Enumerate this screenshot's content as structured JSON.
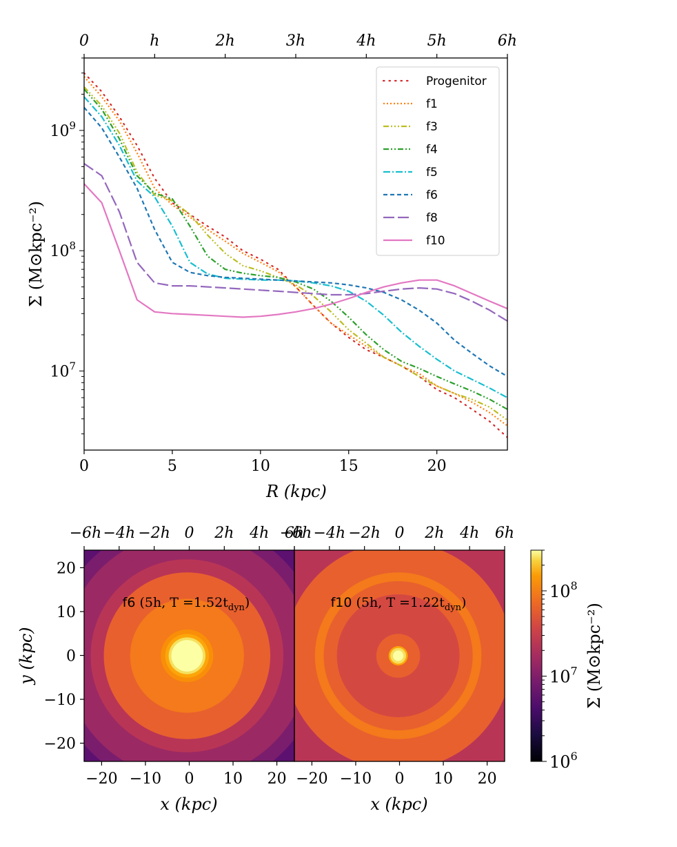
{
  "chart_data": [
    {
      "type": "line",
      "title": "",
      "xlabel": "R (kpc)",
      "ylabel": "Σ (M⊙kpc⁻²)",
      "yscale": "log",
      "xlim": [
        0,
        24
      ],
      "ylim": [
        2200000,
        4000000000
      ],
      "x_ticks": [
        0,
        5,
        10,
        15,
        20
      ],
      "y_ticks": [
        {
          "value": 10000000,
          "mantissa": "10",
          "exp": "7"
        },
        {
          "value": 100000000,
          "mantissa": "10",
          "exp": "8"
        },
        {
          "value": 1000000000,
          "mantissa": "10",
          "exp": "9"
        }
      ],
      "top_axis": {
        "label_unit": "h",
        "ticks": [
          {
            "value": 0,
            "label": "0"
          },
          {
            "value": 4,
            "label": "h"
          },
          {
            "value": 8,
            "label": "2h"
          },
          {
            "value": 12,
            "label": "3h"
          },
          {
            "value": 16,
            "label": "4h"
          },
          {
            "value": 20,
            "label": "5h"
          },
          {
            "value": 24,
            "label": "6h"
          }
        ]
      },
      "legend_position": "top-right",
      "series": [
        {
          "name": "Progenitor",
          "color": "#d62728",
          "dash": "1.5,7",
          "x": [
            0,
            1,
            2,
            3,
            4,
            5,
            6,
            7,
            8,
            9,
            10,
            11,
            12,
            13,
            14,
            15,
            16,
            17,
            18,
            19,
            20,
            21,
            22,
            23,
            24
          ],
          "y": [
            3000000000,
            2100000000,
            1300000000,
            750000000,
            400000000,
            250000000,
            200000000,
            160000000,
            130000000,
            100000000,
            85000000,
            70000000,
            50000000,
            35000000,
            25000000,
            19000000,
            15000000,
            13000000,
            11000000,
            9000000,
            7000000,
            6000000,
            4800000,
            3800000,
            2800000
          ]
        },
        {
          "name": "f1",
          "color": "#ff7f0e",
          "dash": "2,3",
          "x": [
            0,
            1,
            2,
            3,
            4,
            5,
            6,
            7,
            8,
            9,
            10,
            11,
            12,
            13,
            14,
            15,
            16,
            17,
            18,
            19,
            20,
            21,
            22,
            23,
            24
          ],
          "y": [
            2800000000,
            1900000000,
            1200000000,
            650000000,
            330000000,
            240000000,
            190000000,
            150000000,
            120000000,
            95000000,
            80000000,
            67000000,
            50000000,
            35000000,
            25000000,
            20000000,
            16000000,
            13000000,
            11000000,
            9500000,
            7500000,
            6500000,
            5500000,
            4500000,
            3500000
          ]
        },
        {
          "name": "f3",
          "color": "#bcbd22",
          "dash": "8,3,2,3,2,3,2,3",
          "x": [
            0,
            1,
            2,
            3,
            4,
            5,
            6,
            7,
            8,
            9,
            10,
            11,
            12,
            13,
            14,
            15,
            16,
            17,
            18,
            19,
            20,
            21,
            22,
            23,
            24
          ],
          "y": [
            2300000000,
            1600000000,
            950000000,
            450000000,
            290000000,
            260000000,
            200000000,
            135000000,
            95000000,
            75000000,
            68000000,
            60000000,
            52000000,
            42000000,
            31000000,
            22000000,
            17000000,
            13000000,
            11000000,
            9000000,
            7500000,
            6500000,
            5800000,
            5000000,
            3900000
          ]
        },
        {
          "name": "f4",
          "color": "#2ca02c",
          "dash": "8,3,2,3,2,3",
          "x": [
            0,
            1,
            2,
            3,
            4,
            5,
            6,
            7,
            8,
            9,
            10,
            11,
            12,
            13,
            14,
            15,
            16,
            17,
            18,
            19,
            20,
            21,
            22,
            23,
            24
          ],
          "y": [
            2200000000,
            1500000000,
            850000000,
            420000000,
            300000000,
            270000000,
            160000000,
            90000000,
            70000000,
            65000000,
            62000000,
            60000000,
            55000000,
            48000000,
            38000000,
            28000000,
            20000000,
            15000000,
            12000000,
            10500000,
            9000000,
            7800000,
            6800000,
            5800000,
            4800000
          ]
        },
        {
          "name": "f5",
          "color": "#17becf",
          "dash": "10,3,2,3",
          "x": [
            0,
            1,
            2,
            3,
            4,
            5,
            6,
            7,
            8,
            9,
            10,
            11,
            12,
            13,
            14,
            15,
            16,
            17,
            18,
            19,
            20,
            21,
            22,
            23,
            24
          ],
          "y": [
            1900000000,
            1300000000,
            750000000,
            380000000,
            280000000,
            160000000,
            80000000,
            64000000,
            59000000,
            58000000,
            57000000,
            57000000,
            56000000,
            54000000,
            51000000,
            46000000,
            38000000,
            29000000,
            21000000,
            16000000,
            12500000,
            10000000,
            8500000,
            7200000,
            6000000
          ]
        },
        {
          "name": "f6",
          "color": "#1f77b4",
          "dash": "6,4",
          "x": [
            0,
            1,
            2,
            3,
            4,
            5,
            6,
            7,
            8,
            9,
            10,
            11,
            12,
            13,
            14,
            15,
            16,
            17,
            18,
            19,
            20,
            21,
            22,
            23,
            24
          ],
          "y": [
            1550000000,
            1050000000,
            600000000,
            330000000,
            150000000,
            80000000,
            66000000,
            62000000,
            60000000,
            59000000,
            58000000,
            57000000,
            56000000,
            55000000,
            54000000,
            52000000,
            49000000,
            45000000,
            39000000,
            32000000,
            25000000,
            18000000,
            14000000,
            11000000,
            9000000
          ]
        },
        {
          "name": "f8",
          "color": "#9467bd",
          "dash": "16,5",
          "x": [
            0,
            1,
            2,
            3,
            4,
            5,
            6,
            7,
            8,
            9,
            10,
            11,
            12,
            13,
            14,
            15,
            16,
            17,
            18,
            19,
            20,
            21,
            22,
            23,
            24
          ],
          "y": [
            530000000,
            420000000,
            210000000,
            80000000,
            54000000,
            51000000,
            51000000,
            50000000,
            49000000,
            48000000,
            47000000,
            46000000,
            45000000,
            44000000,
            43000000,
            43000000,
            44000000,
            46000000,
            48000000,
            49000000,
            48000000,
            44000000,
            38000000,
            32000000,
            26000000
          ]
        },
        {
          "name": "f10",
          "color": "#e377c2",
          "dash": "",
          "x": [
            0,
            1,
            2,
            3,
            4,
            5,
            6,
            7,
            8,
            9,
            10,
            11,
            12,
            13,
            14,
            15,
            16,
            17,
            18,
            19,
            20,
            21,
            22,
            23,
            24
          ],
          "y": [
            360000000,
            250000000,
            100000000,
            39000000,
            31000000,
            30000000,
            29500000,
            29000000,
            28500000,
            28000000,
            28500000,
            29500000,
            31000000,
            33000000,
            36000000,
            40000000,
            45000000,
            50000000,
            54000000,
            57000000,
            57000000,
            51000000,
            44000000,
            38000000,
            33000000
          ]
        }
      ]
    },
    {
      "type": "heatmap",
      "panels": [
        {
          "name": "f6",
          "annotation_label": "f6",
          "annotation_detail": "(5h, T =1.52t",
          "annotation_sub": "dyn",
          "annotation_close": ")",
          "center_x": -0.5,
          "center_y": 0,
          "core_radius_kpc": 4.2,
          "edge_level": 0.35
        },
        {
          "name": "f10",
          "annotation_label": "f10",
          "annotation_detail": "(5h, T =1.22t",
          "annotation_sub": "dyn",
          "annotation_close": ")",
          "center_x": -0.3,
          "center_y": 0,
          "core_radius_kpc": 1.8,
          "edge_level": 0.48
        }
      ],
      "xlabel": "x (kpc)",
      "ylabel": "y (kpc)",
      "xlim": [
        -24,
        24
      ],
      "ylim": [
        -24,
        24
      ],
      "x_ticks": [
        -20,
        -10,
        0,
        10,
        20
      ],
      "y_ticks": [
        -20,
        -10,
        0,
        10,
        20
      ],
      "top_ticks": [
        "−6h",
        "−4h",
        "−2h",
        "0",
        "2h",
        "4h",
        "6h"
      ],
      "colorbar": {
        "label": "Σ (M⊙kpc⁻²)",
        "scale": "log",
        "range": [
          1000000,
          300000000
        ],
        "ticks": [
          {
            "value": 1000000,
            "mantissa": "10",
            "exp": "6"
          },
          {
            "value": 10000000,
            "mantissa": "10",
            "exp": "7"
          },
          {
            "value": 100000000,
            "mantissa": "10",
            "exp": "8"
          }
        ],
        "colormap": "inferno"
      }
    }
  ]
}
